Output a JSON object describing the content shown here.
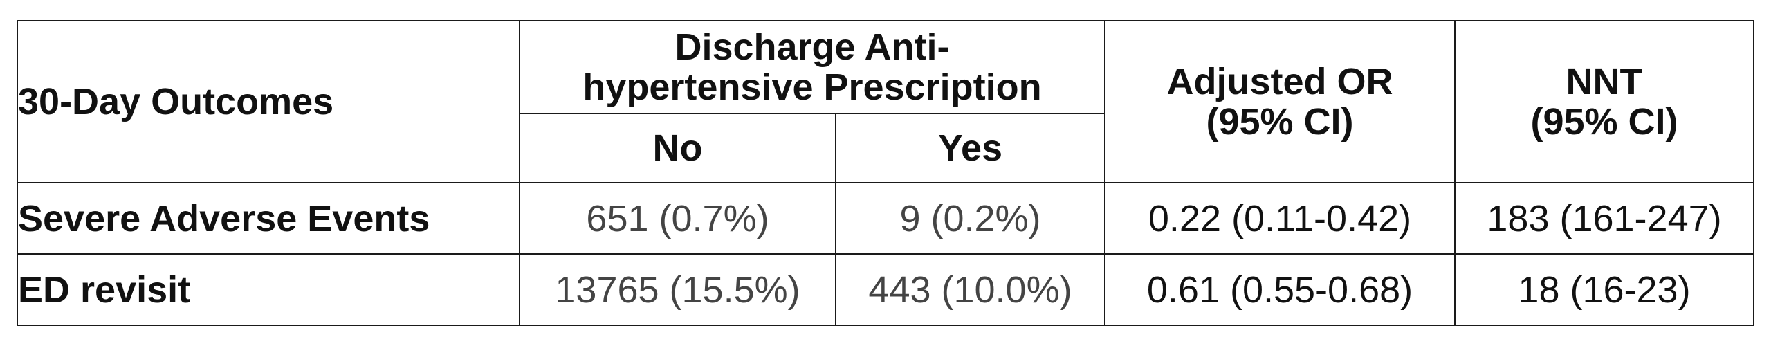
{
  "table": {
    "header": {
      "outcomes_label": "30-Day Outcomes",
      "group_label_line1": "Discharge Anti-",
      "group_label_line2": "hypertensive Prescription",
      "sub_no": "No",
      "sub_yes": "Yes",
      "or_line1": "Adjusted OR",
      "or_line2": "(95% CI)",
      "nnt_line1": "NNT",
      "nnt_line2": "(95% CI)"
    },
    "rows": [
      {
        "label": "Severe Adverse Events",
        "no": "651 (0.7%)",
        "yes": "9 (0.2%)",
        "or": "0.22 (0.11-0.42)",
        "nnt": "183 (161-247)"
      },
      {
        "label": "ED revisit",
        "no": "13765 (15.5%)",
        "yes": "443 (10.0%)",
        "or": "0.61 (0.55-0.68)",
        "nnt": "18 (16-23)"
      }
    ]
  }
}
